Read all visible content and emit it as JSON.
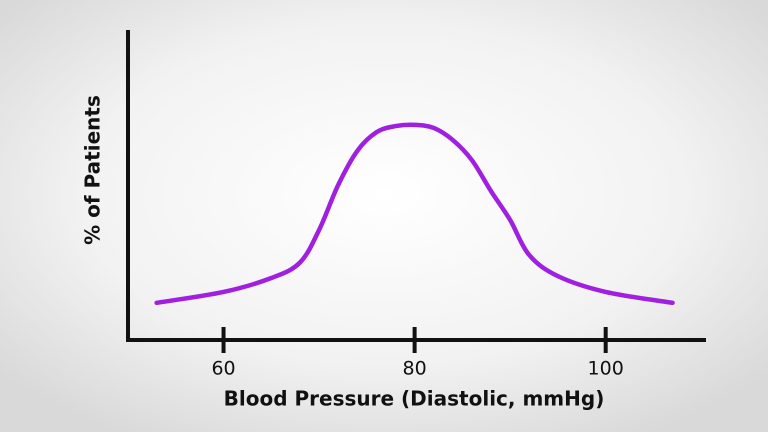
{
  "chart_data": {
    "type": "line",
    "x_label": "Blood Pressure (Diastolic, mmHg)",
    "y_label": "% of Patients",
    "x": [
      53,
      60,
      65,
      68,
      70,
      72,
      74,
      76,
      78,
      80,
      82,
      84,
      86,
      88,
      90,
      92,
      95,
      100,
      107
    ],
    "series": [
      {
        "color": "#a020e0",
        "values": [
          12,
          15.5,
          20,
          25,
          35.5,
          50,
          61,
          67,
          69,
          69.4,
          68.4,
          64.5,
          58,
          48,
          38.7,
          27.4,
          20.6,
          15.5,
          12
        ]
      }
    ],
    "xlim": [
      50,
      110.5
    ],
    "xticks": [
      60,
      80,
      100
    ],
    "ylim": [
      0,
      100
    ]
  }
}
